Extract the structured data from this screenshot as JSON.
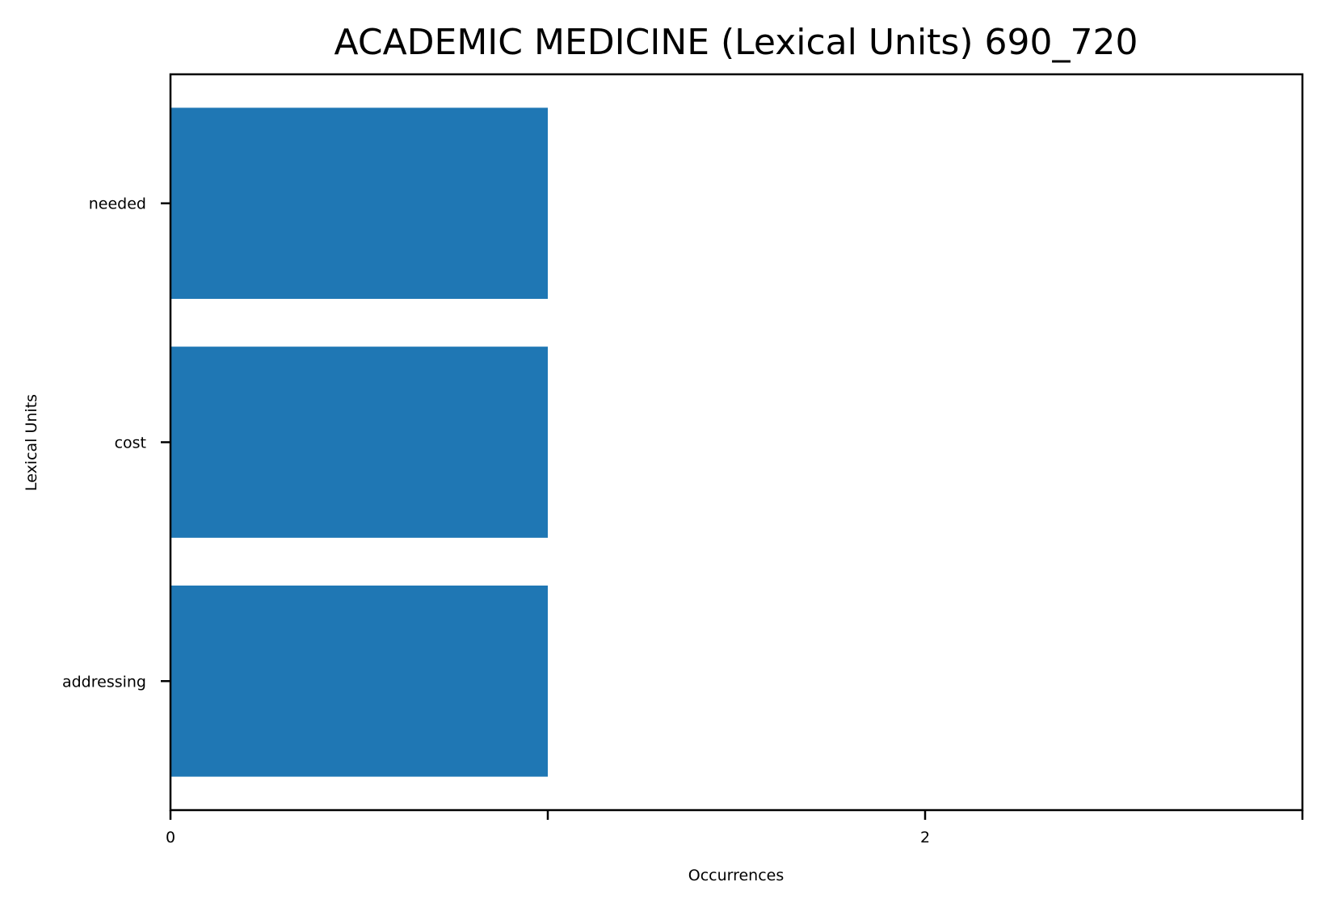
{
  "chart_data": {
    "type": "bar",
    "orientation": "horizontal",
    "title": "ACADEMIC MEDICINE (Lexical Units) 690_720",
    "xlabel": "Occurrences",
    "ylabel": "Lexical Units",
    "categories": [
      "needed",
      "cost",
      "addressing"
    ],
    "values": [
      1,
      1,
      1
    ],
    "xlim": [
      0,
      3
    ],
    "xticks": [
      0,
      1,
      2,
      3
    ],
    "xtick_labels": [
      "0",
      "",
      "2",
      ""
    ],
    "grid": false,
    "legend": "none",
    "bar_color": "#1f77b4"
  }
}
